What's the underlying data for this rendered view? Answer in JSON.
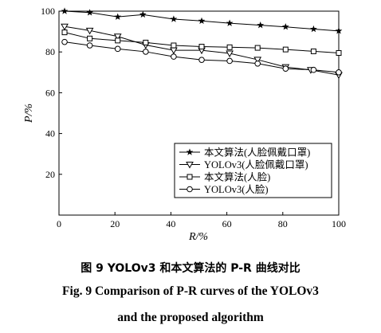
{
  "chart_data": {
    "type": "line",
    "title": "",
    "xlabel": "R/%",
    "ylabel": "P/%",
    "xlim": [
      0,
      100
    ],
    "ylim": [
      0,
      100
    ],
    "xticks": [
      "0",
      "20",
      "40",
      "60",
      "80",
      "100"
    ],
    "yticks": [
      "20",
      "40",
      "60",
      "80",
      "100"
    ],
    "grid": false,
    "legend_position": "inside lower-right",
    "series": [
      {
        "name": "本文算法(人脸佩戴口罩)",
        "marker": "star",
        "x": [
          2,
          11,
          21,
          30,
          41,
          51,
          61,
          72,
          81,
          91,
          100
        ],
        "y": [
          100,
          99.3,
          97.2,
          98.3,
          96.1,
          95.2,
          94.1,
          93.1,
          92.3,
          91.2,
          90.3
        ]
      },
      {
        "name": "YOLOv3(人脸佩戴口罩)",
        "marker": "triangle-down",
        "x": [
          2,
          11,
          21,
          31,
          41,
          51,
          61,
          71,
          81,
          90,
          100
        ],
        "y": [
          92.5,
          90.5,
          87.6,
          83.4,
          80.8,
          80.8,
          79.3,
          76.2,
          72.6,
          71.2,
          68.7
        ]
      },
      {
        "name": "本文算法(人脸)",
        "marker": "square",
        "x": [
          2,
          11,
          21,
          31,
          41,
          51,
          61,
          71,
          81,
          91,
          100
        ],
        "y": [
          89.6,
          86.6,
          85.6,
          84.6,
          83.2,
          82.6,
          82.3,
          82.0,
          81.2,
          80.3,
          79.5
        ]
      },
      {
        "name": "YOLOv3(人脸)",
        "marker": "circle",
        "x": [
          2,
          11,
          21,
          31,
          41,
          51,
          61,
          71,
          81,
          91,
          100
        ],
        "y": [
          84.9,
          83.2,
          81.5,
          80.1,
          77.7,
          76.1,
          75.6,
          74.3,
          71.8,
          71.2,
          70.0
        ]
      }
    ]
  },
  "caption": {
    "cn": "图 9   YOLOv3 和本文算法的 P-R 曲线对比",
    "en_line1": "Fig. 9   Comparison of P-R curves of the YOLOv3",
    "en_line2": "and the proposed algorithm"
  }
}
